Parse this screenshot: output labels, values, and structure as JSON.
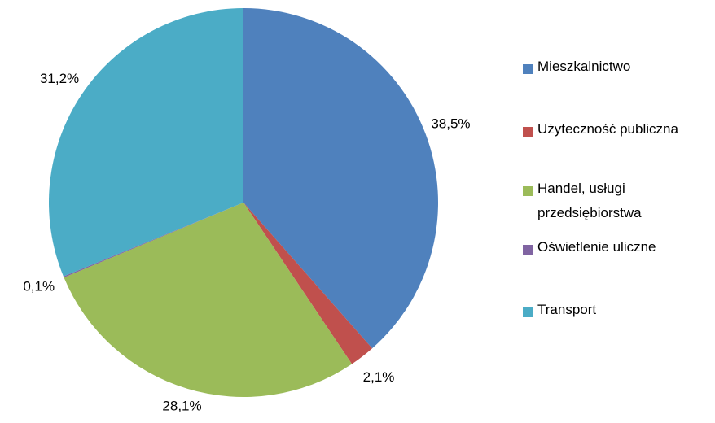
{
  "chart_data": {
    "type": "pie",
    "categories": [
      "Mieszkalnictwo",
      "Użyteczność publiczna",
      "Handel, usługi przedsiębiorstwa",
      "Oświetlenie uliczne",
      "Transport"
    ],
    "values": [
      38.5,
      2.1,
      28.1,
      0.1,
      31.2
    ],
    "value_labels": [
      "38,5%",
      "2,1%",
      "28,1%",
      "0,1%",
      "31,2%"
    ],
    "colors": [
      "#4f81bd",
      "#c0504d",
      "#9bbb59",
      "#8064a2",
      "#4bacc6"
    ],
    "legend": "right"
  }
}
